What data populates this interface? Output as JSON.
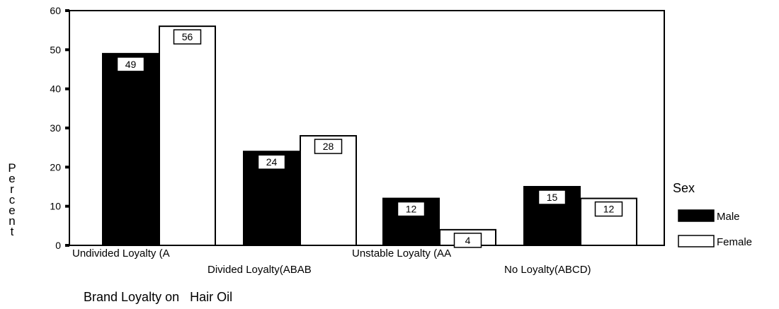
{
  "chart_data": {
    "type": "bar",
    "categories": [
      "Undivided Loyalty (A",
      "Divided Loyalty(ABAB",
      "Unstable Loyalty (AA",
      "No Loyalty(ABCD)"
    ],
    "series": [
      {
        "name": "Male",
        "values": [
          49,
          24,
          12,
          15
        ],
        "color": "#000000"
      },
      {
        "name": "Female",
        "values": [
          56,
          28,
          4,
          12
        ],
        "color": "#ffffff"
      }
    ],
    "data_labels": true,
    "xlabel": "Brand Loyalty on   Hair Oil",
    "ylabel": "Percent",
    "ylim": [
      0,
      60
    ],
    "yticks": [
      0,
      10,
      20,
      30,
      40,
      50,
      60
    ],
    "grid": false,
    "legend": {
      "title": "Sex",
      "position": "right"
    }
  }
}
